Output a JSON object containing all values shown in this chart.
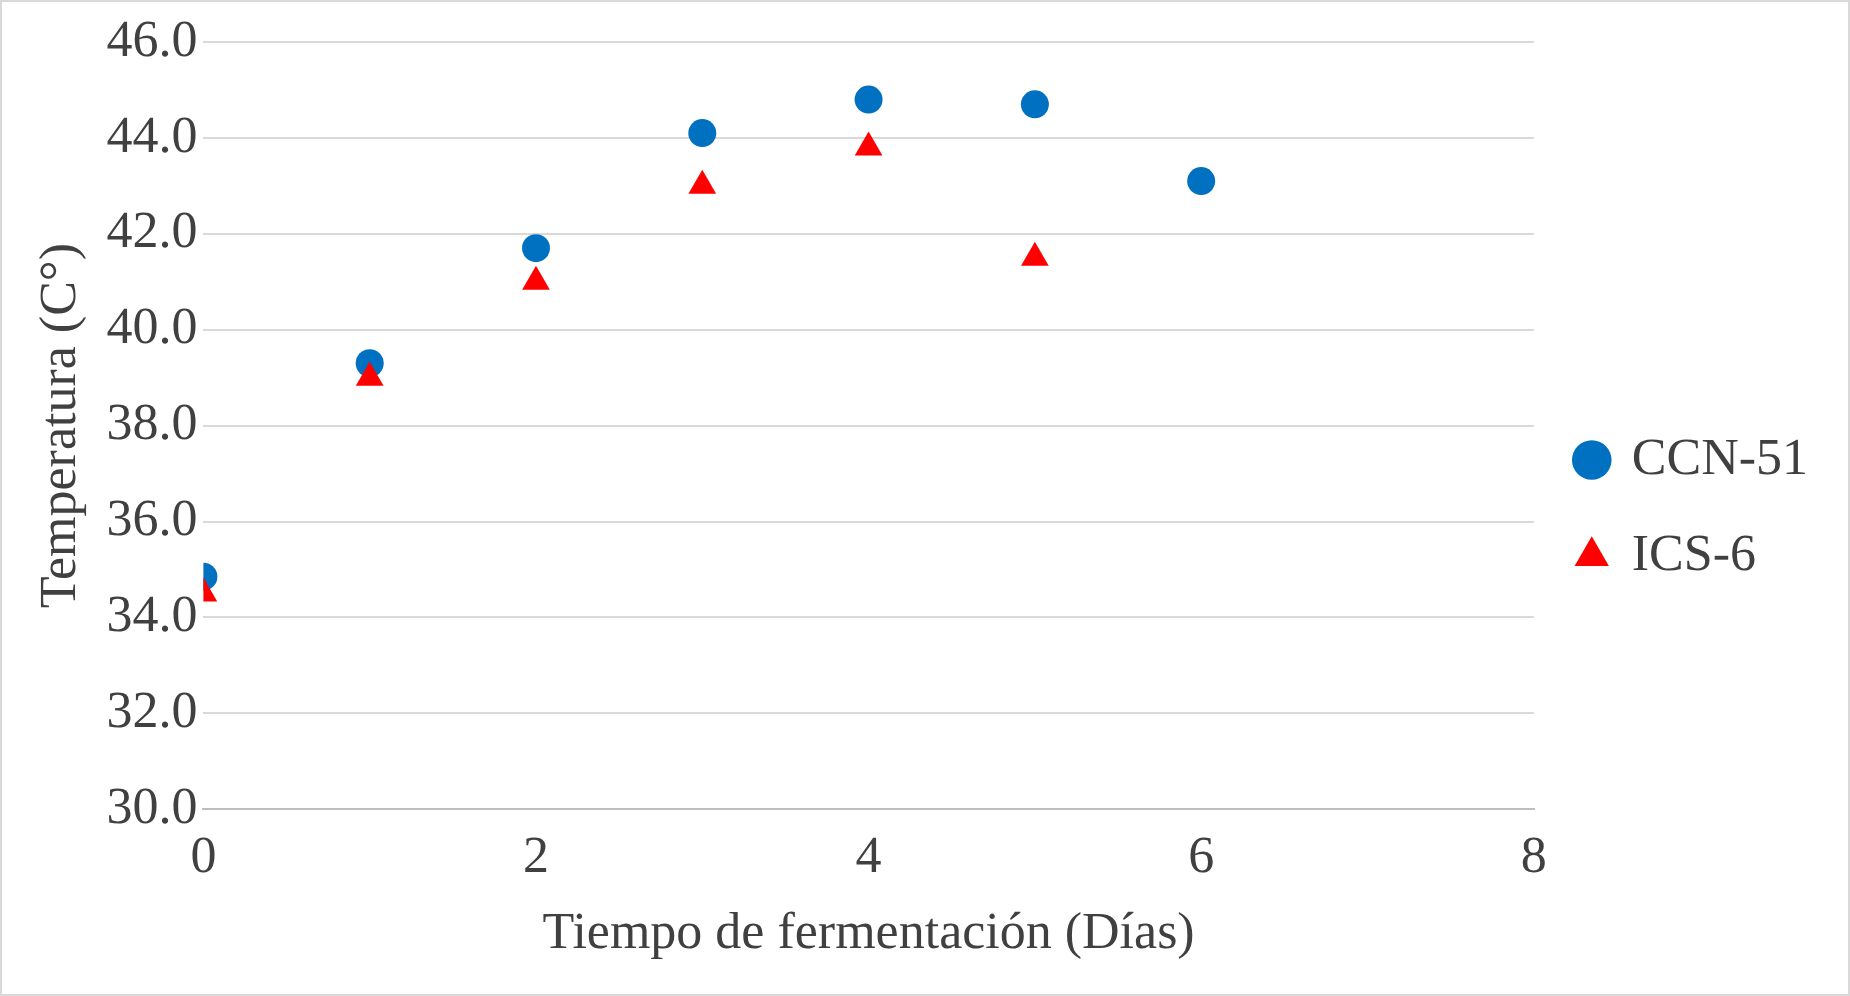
{
  "chart_data": {
    "type": "scatter",
    "xlabel": "Tiempo de fermentación (Días)",
    "ylabel": "Temperatura (C°)",
    "x": [
      0,
      1,
      2,
      3,
      4,
      5,
      6
    ],
    "series": [
      {
        "name": "CCN-51",
        "color": "#0070c0",
        "marker": "circle",
        "values": [
          34.85,
          39.3,
          41.7,
          44.1,
          44.8,
          44.7,
          43.1
        ]
      },
      {
        "name": "ICS-6",
        "color": "#ff0000",
        "marker": "triangle",
        "values": [
          34.5,
          39.0,
          41.0,
          43.0,
          43.8,
          41.5,
          null
        ]
      }
    ],
    "xlim": [
      0,
      8
    ],
    "xticks": [
      0,
      2,
      4,
      6,
      8
    ],
    "ylim": [
      30,
      46
    ],
    "yticks": [
      {
        "value": 30,
        "label": "30.0"
      },
      {
        "value": 32,
        "label": "32.0"
      },
      {
        "value": 34,
        "label": "34.0"
      },
      {
        "value": 36,
        "label": "36.0"
      },
      {
        "value": 38,
        "label": "38.0"
      },
      {
        "value": 40,
        "label": "40.0"
      },
      {
        "value": 42,
        "label": "42.0"
      },
      {
        "value": 44,
        "label": "44.0"
      },
      {
        "value": 46,
        "label": "46.0"
      }
    ],
    "grid": "y",
    "legend": "right"
  }
}
